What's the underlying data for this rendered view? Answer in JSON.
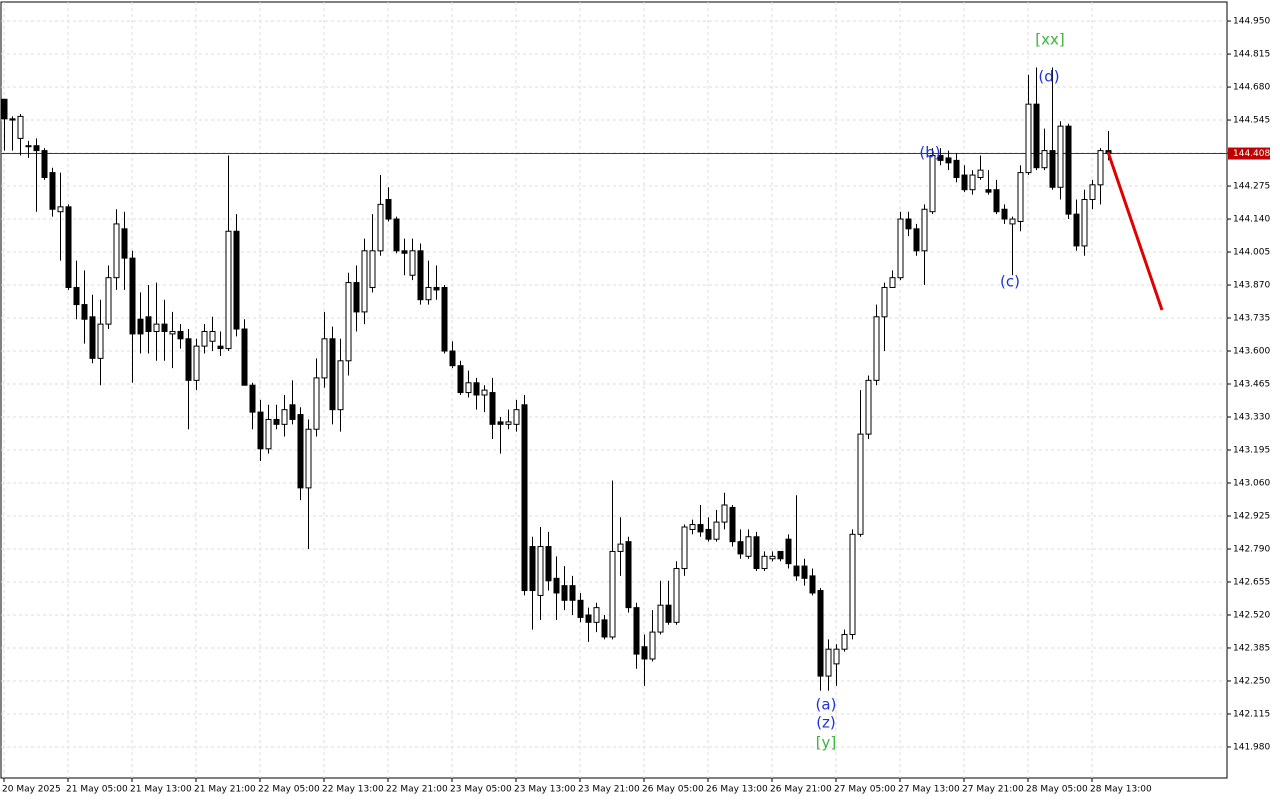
{
  "chart_data": {
    "type": "candlestick",
    "categories": [
      "20 May 2025",
      null,
      null,
      null,
      null,
      null,
      null,
      null,
      "21 May 05:00",
      null,
      null,
      null,
      null,
      null,
      null,
      null,
      "21 May 13:00",
      null,
      null,
      null,
      null,
      null,
      null,
      null,
      "21 May 21:00",
      null,
      null,
      null,
      null,
      null,
      null,
      null,
      "22 May 05:00",
      null,
      null,
      null,
      null,
      null,
      null,
      null,
      "22 May 13:00",
      null,
      null,
      null,
      null,
      null,
      null,
      null,
      "22 May 21:00",
      null,
      null,
      null,
      null,
      null,
      null,
      null,
      "23 May 05:00",
      null,
      null,
      null,
      null,
      null,
      null,
      null,
      "23 May 13:00",
      null,
      null,
      null,
      null,
      null,
      null,
      null,
      "23 May 21:00",
      null,
      null,
      null,
      null,
      null,
      null,
      null,
      "26 May 05:00",
      null,
      null,
      null,
      null,
      null,
      null,
      null,
      "26 May 13:00",
      null,
      null,
      null,
      null,
      null,
      null,
      null,
      "26 May 21:00",
      null,
      null,
      null,
      null,
      null,
      null,
      null,
      "27 May 05:00",
      null,
      null,
      null,
      null,
      null,
      null,
      null,
      "27 May 13:00",
      null,
      null,
      null,
      null,
      null,
      null,
      null,
      "27 May 21:00",
      null,
      null,
      null,
      null,
      null,
      null,
      null,
      "28 May 05:00",
      null,
      null,
      null,
      null,
      null,
      null,
      null,
      "28 May 13:00",
      null,
      null
    ],
    "open": [
      144.63,
      144.55,
      144.47,
      144.44,
      144.44,
      144.42,
      144.33,
      144.17,
      144.19,
      143.86,
      143.79,
      143.74,
      143.57,
      143.71,
      143.9,
      144.1,
      143.98,
      143.73,
      143.74,
      143.68,
      143.71,
      143.67,
      143.68,
      143.65,
      143.48,
      143.62,
      143.64,
      143.62,
      143.61,
      144.09,
      143.69,
      143.46,
      143.35,
      143.2,
      143.32,
      143.3,
      143.38,
      143.34,
      143.04,
      143.28,
      143.49,
      143.65,
      143.36,
      143.56,
      143.88,
      143.76,
      143.86,
      144.01,
      144.22,
      144.14,
      144.01,
      143.91,
      144.01,
      143.81,
      143.86,
      143.86,
      143.6,
      143.54,
      143.43,
      143.47,
      143.42,
      143.43,
      143.31,
      143.3,
      143.3,
      143.38,
      142.8,
      142.6,
      142.8,
      142.67,
      142.64,
      142.64,
      142.58,
      142.52,
      142.49,
      142.5,
      142.43,
      142.78,
      142.82,
      142.55,
      142.39,
      142.34,
      142.45,
      142.56,
      142.49,
      142.71,
      142.87,
      142.89,
      142.87,
      142.83,
      142.9,
      142.96,
      142.82,
      142.76,
      142.84,
      142.71,
      142.75,
      142.78,
      142.83,
      142.72,
      142.72,
      142.68,
      142.62,
      142.27,
      142.32,
      142.38,
      142.44,
      142.85,
      143.26,
      143.48,
      143.74,
      143.86,
      143.9,
      144.14,
      144.1,
      144.01,
      144.17,
      144.4,
      144.39,
      144.38,
      144.32,
      144.26,
      144.31,
      144.26,
      144.26,
      144.18,
      144.12,
      144.13,
      144.33,
      144.61,
      144.35,
      144.42,
      144.27,
      144.52,
      144.16,
      144.03,
      144.22,
      144.28,
      144.42
    ],
    "high": [
      144.63,
      144.56,
      144.57,
      144.46,
      144.47,
      144.43,
      144.35,
      144.33,
      144.2,
      143.97,
      143.93,
      143.83,
      143.81,
      143.95,
      144.18,
      144.17,
      144.01,
      143.84,
      143.87,
      143.88,
      143.81,
      143.76,
      143.71,
      143.69,
      143.65,
      143.71,
      143.74,
      143.68,
      144.4,
      144.16,
      143.73,
      143.47,
      143.4,
      143.38,
      143.38,
      143.42,
      143.48,
      143.37,
      143.32,
      143.57,
      143.76,
      143.7,
      143.65,
      143.92,
      143.95,
      144.06,
      144.16,
      144.32,
      144.27,
      144.15,
      144.06,
      144.06,
      144.04,
      143.97,
      143.95,
      143.87,
      143.64,
      143.56,
      143.52,
      143.49,
      143.46,
      143.49,
      143.33,
      143.36,
      143.4,
      143.42,
      142.84,
      142.88,
      142.86,
      142.76,
      142.72,
      142.68,
      142.61,
      142.55,
      142.57,
      142.52,
      143.07,
      142.92,
      142.84,
      142.57,
      142.44,
      142.54,
      142.66,
      142.66,
      142.74,
      142.89,
      142.91,
      142.97,
      142.92,
      142.95,
      143.02,
      142.97,
      142.87,
      142.87,
      142.86,
      142.78,
      142.78,
      142.78,
      142.85,
      143.01,
      142.75,
      142.71,
      142.63,
      142.42,
      142.4,
      142.46,
      142.87,
      143.44,
      143.5,
      143.79,
      143.88,
      143.93,
      144.17,
      144.17,
      144.12,
      144.2,
      144.43,
      144.43,
      144.42,
      144.41,
      144.36,
      144.34,
      144.4,
      144.34,
      144.3,
      144.2,
      144.15,
      144.36,
      144.73,
      144.76,
      144.51,
      144.76,
      144.54,
      144.53,
      144.22,
      144.26,
      144.3,
      144.43,
      144.5
    ],
    "low": [
      144.42,
      144.42,
      144.4,
      144.39,
      144.17,
      144.3,
      144.15,
      143.97,
      143.85,
      143.73,
      143.63,
      143.55,
      143.46,
      143.69,
      143.85,
      143.85,
      143.47,
      143.59,
      143.59,
      143.56,
      143.56,
      143.53,
      143.61,
      143.28,
      143.44,
      143.59,
      143.6,
      143.58,
      143.6,
      143.66,
      143.46,
      143.28,
      143.15,
      143.18,
      143.28,
      143.25,
      143.3,
      142.99,
      142.79,
      143.25,
      143.45,
      143.3,
      143.27,
      143.5,
      143.68,
      143.71,
      143.84,
      143.99,
      144.13,
      144.0,
      143.91,
      143.89,
      143.79,
      143.79,
      143.81,
      143.59,
      143.53,
      143.42,
      143.41,
      143.36,
      143.35,
      143.24,
      143.18,
      143.28,
      143.27,
      142.6,
      142.46,
      142.5,
      142.62,
      142.5,
      142.54,
      142.52,
      142.49,
      142.41,
      142.45,
      142.42,
      142.42,
      142.68,
      142.53,
      142.3,
      142.23,
      142.33,
      142.44,
      142.48,
      142.48,
      142.68,
      142.85,
      142.84,
      142.82,
      142.82,
      142.87,
      142.8,
      142.75,
      142.75,
      142.7,
      142.7,
      142.74,
      142.74,
      142.71,
      142.66,
      142.64,
      142.6,
      142.21,
      142.21,
      142.23,
      142.37,
      142.42,
      142.84,
      143.24,
      143.46,
      143.6,
      143.86,
      143.89,
      144.07,
      143.99,
      143.87,
      144.16,
      144.36,
      144.34,
      144.29,
      144.25,
      144.24,
      144.3,
      144.24,
      144.16,
      144.12,
      143.91,
      144.09,
      144.32,
      144.34,
      144.34,
      144.26,
      144.22,
      144.14,
      144.01,
      143.99,
      144.18,
      144.2,
      144.38
    ],
    "close": [
      144.55,
      144.545,
      144.56,
      144.44,
      144.42,
      144.31,
      144.18,
      144.19,
      143.86,
      143.79,
      143.73,
      143.57,
      143.71,
      143.9,
      144.12,
      143.98,
      143.67,
      143.67,
      143.68,
      143.71,
      143.68,
      143.68,
      143.65,
      143.48,
      143.62,
      143.68,
      143.68,
      143.61,
      144.09,
      143.69,
      143.46,
      143.35,
      143.2,
      143.32,
      143.3,
      143.36,
      143.32,
      143.04,
      143.28,
      143.49,
      143.65,
      143.36,
      143.56,
      143.88,
      143.76,
      144.01,
      144.01,
      144.2,
      144.14,
      144.01,
      144.0,
      144.01,
      143.81,
      143.86,
      143.85,
      143.6,
      143.54,
      143.43,
      143.47,
      143.42,
      143.44,
      143.3,
      143.3,
      143.31,
      143.36,
      142.62,
      142.62,
      142.8,
      142.66,
      142.61,
      142.58,
      142.58,
      142.51,
      142.49,
      142.55,
      142.43,
      142.78,
      142.81,
      142.55,
      142.36,
      142.34,
      142.45,
      142.56,
      142.49,
      142.71,
      142.88,
      142.89,
      142.86,
      142.83,
      142.9,
      142.97,
      142.82,
      142.77,
      142.84,
      142.71,
      142.76,
      142.76,
      142.75,
      142.73,
      142.68,
      142.67,
      142.61,
      142.27,
      142.38,
      142.38,
      142.44,
      142.85,
      143.26,
      143.48,
      143.74,
      143.86,
      143.9,
      144.14,
      144.1,
      144.01,
      144.18,
      144.4,
      144.38,
      144.37,
      144.31,
      144.26,
      144.32,
      144.34,
      144.25,
      144.17,
      144.14,
      144.14,
      144.33,
      144.61,
      144.35,
      144.42,
      144.27,
      144.52,
      144.16,
      144.03,
      144.22,
      144.28,
      144.42,
      144.408
    ],
    "ylim": [
      141.853,
      145.028
    ],
    "yticks": [
      {
        "value": 141.98,
        "label": "141.980"
      },
      142.115,
      {
        "value": 142.25,
        "label": "142.250"
      },
      142.385,
      {
        "value": 142.52,
        "label": "142.520"
      },
      142.655,
      {
        "value": 142.79,
        "label": "142.790"
      },
      142.925,
      {
        "value": 143.06,
        "label": "143.060"
      },
      143.195,
      {
        "value": 143.33,
        "label": "143.330"
      },
      143.465,
      {
        "value": 143.6,
        "label": "143.600"
      },
      143.735,
      {
        "value": 143.87,
        "label": "143.870"
      },
      144.005,
      {
        "value": 144.14,
        "label": "144.140"
      },
      144.275,
      {
        "value": 144.41,
        "label": "144.410"
      },
      144.545,
      {
        "value": 144.68,
        "label": "144.680"
      },
      144.815,
      {
        "value": 144.95,
        "label": "144.950"
      }
    ],
    "grid": true,
    "price_line": 144.408,
    "annotations": [
      "[xx]",
      "(d)",
      "(b)",
      "(c)",
      "(a)",
      "(z)",
      "[y]"
    ]
  }
}
